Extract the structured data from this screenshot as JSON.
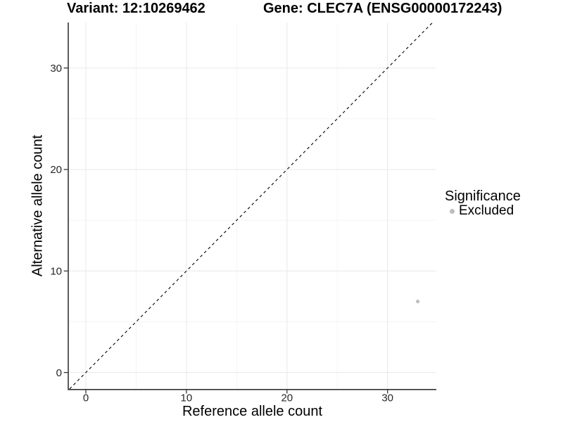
{
  "chart_data": {
    "type": "scatter",
    "titles": {
      "left": "Variant: 12:10269462",
      "right": "Gene: CLEC7A (ENSG00000172243)"
    },
    "xlabel": "Reference allele count",
    "ylabel": "Alternative allele count",
    "xlim": [
      -1.75,
      34.85
    ],
    "ylim": [
      -1.62,
      34.48
    ],
    "x_ticks": [
      0,
      10,
      20,
      30
    ],
    "y_ticks": [
      0,
      10,
      20,
      30
    ],
    "x_minor_ticks": [
      5,
      15,
      25
    ],
    "y_minor_ticks": [
      5,
      15,
      25
    ],
    "grid": true,
    "identity_line": {
      "style": "dashed",
      "color": "#000000",
      "dash": [
        4,
        4
      ]
    },
    "series": [
      {
        "name": "Excluded",
        "color": "#bebebe",
        "points": [
          {
            "x": 33,
            "y": 7
          }
        ]
      }
    ],
    "legend": {
      "title": "Significance",
      "position": "right",
      "items": [
        {
          "label": "Excluded",
          "color": "#bebebe"
        }
      ]
    },
    "colors": {
      "background": "#ffffff",
      "axis_line": "#333333",
      "tick_label": "#262626",
      "axis_title": "#000000",
      "grid_major": "#e8e8e8",
      "grid_minor": "#f4f4f4"
    }
  }
}
